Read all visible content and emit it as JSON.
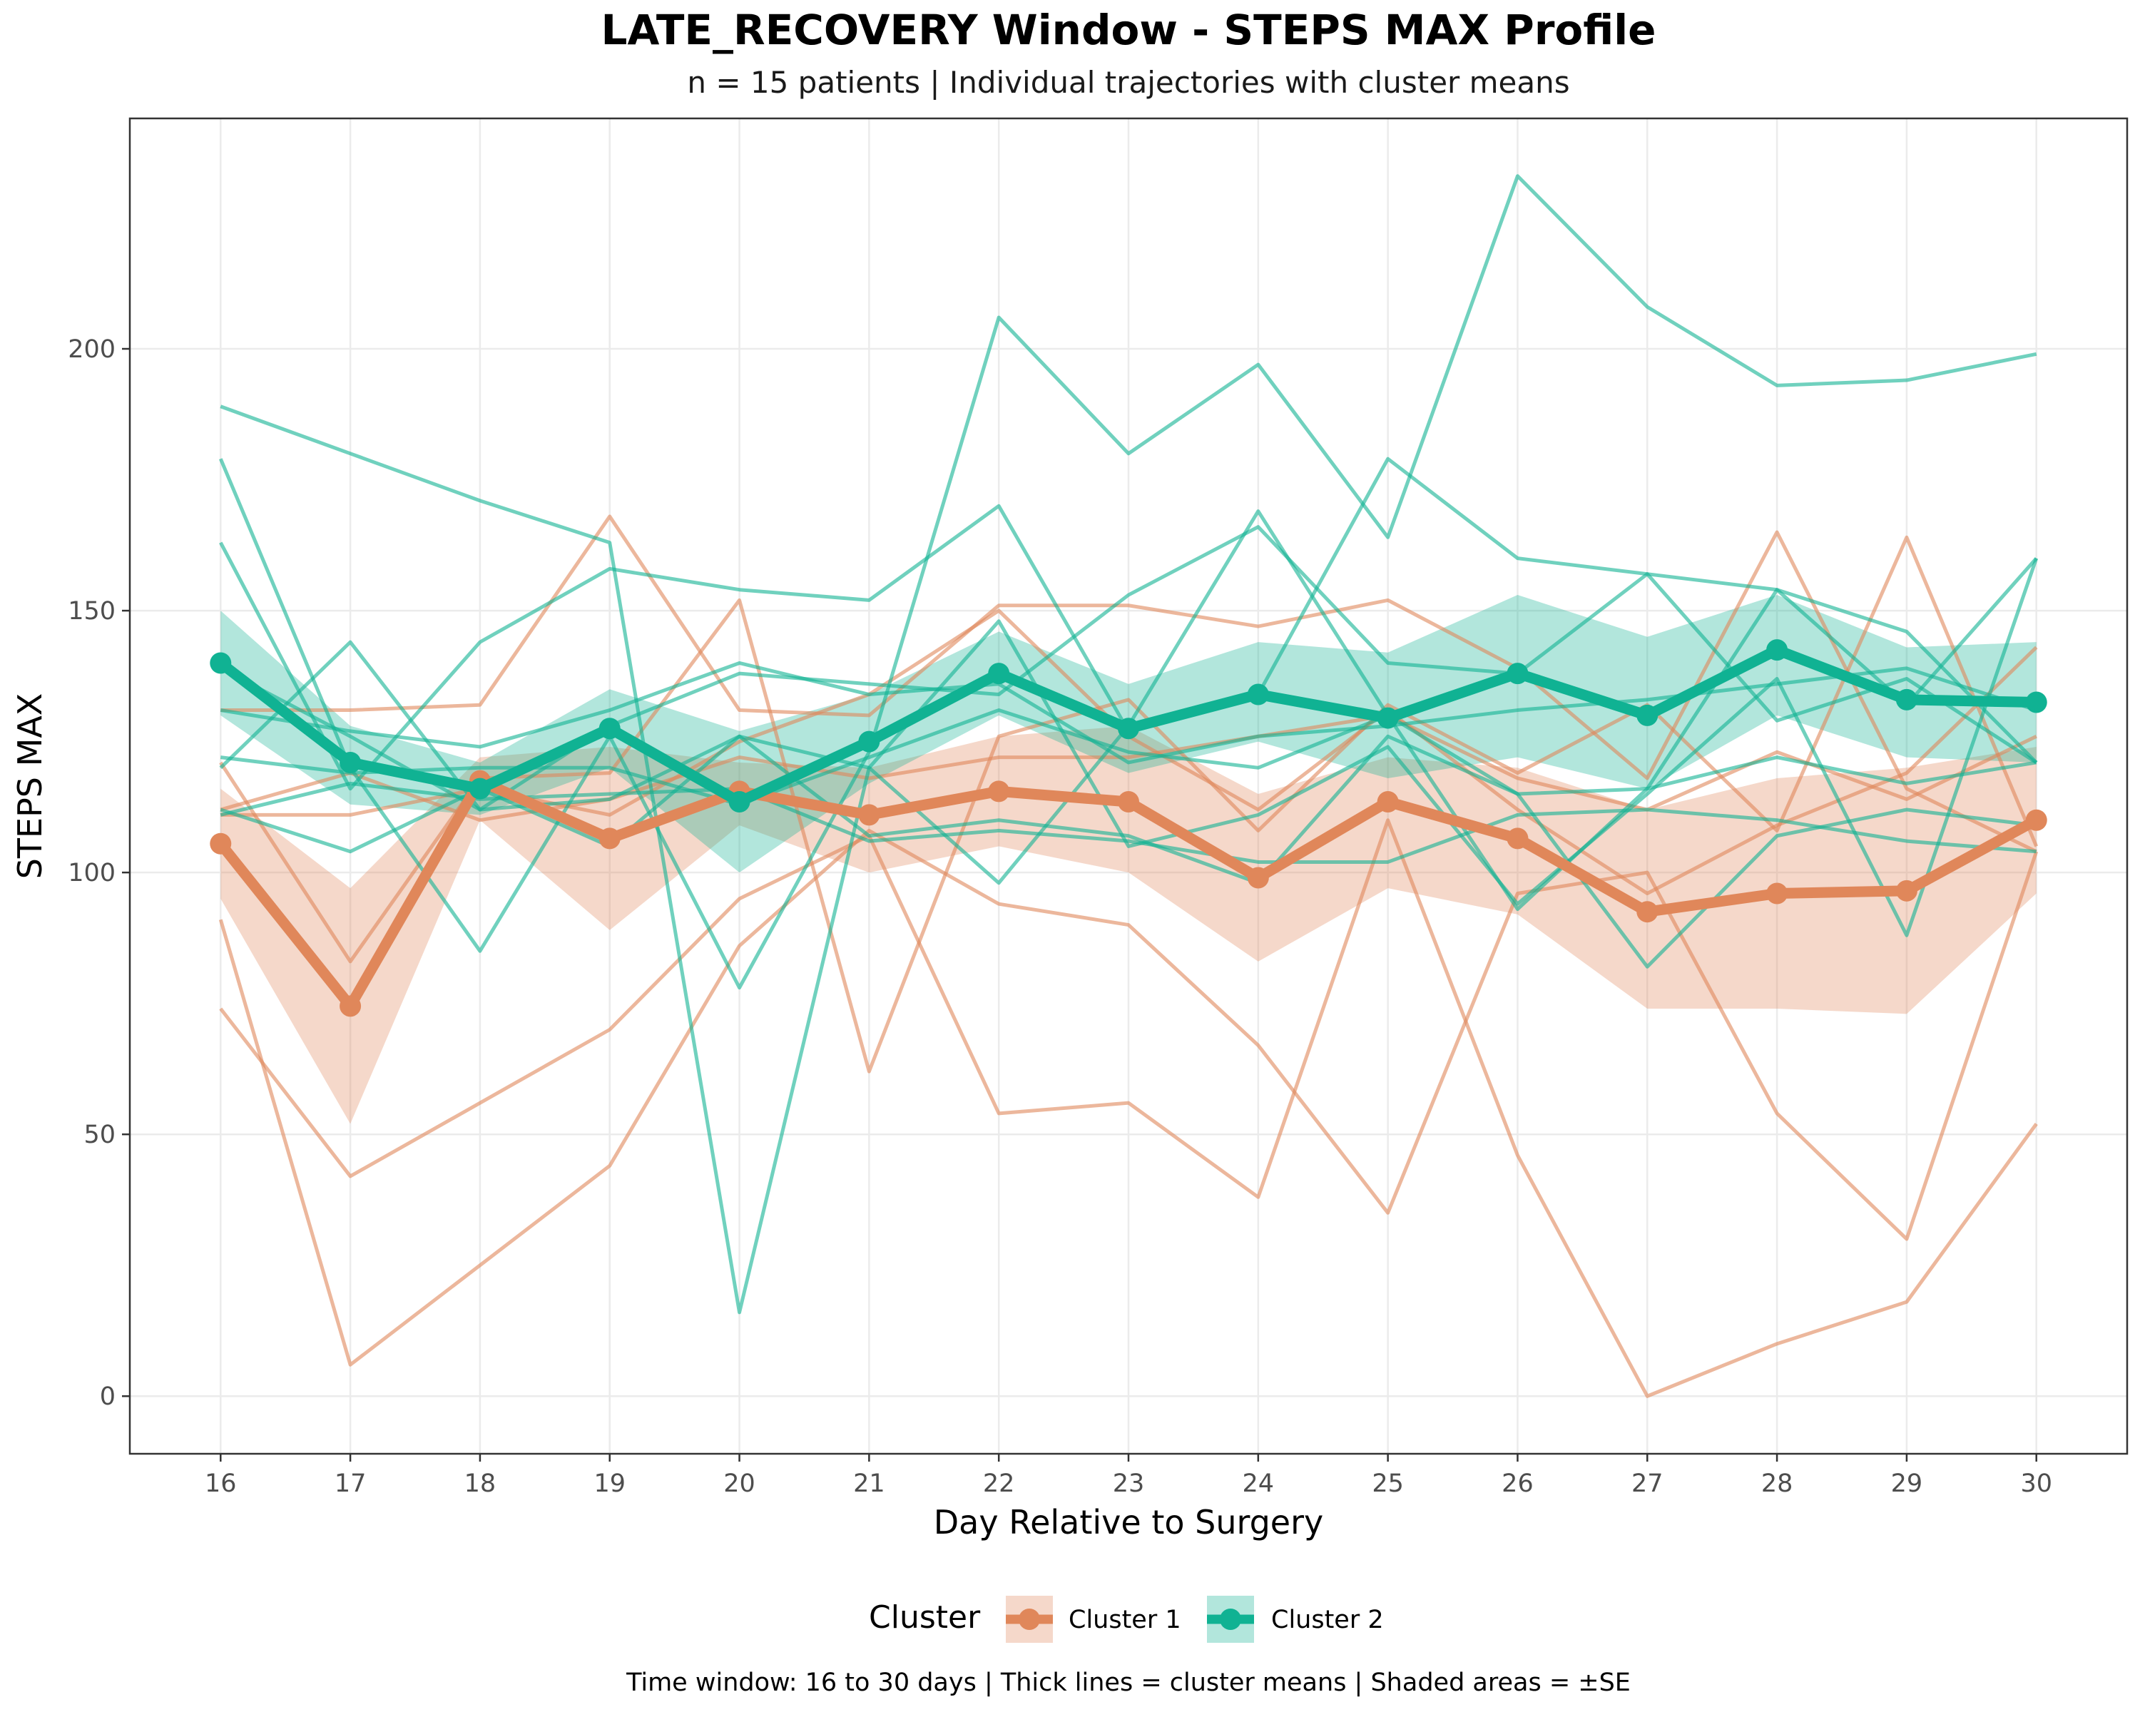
{
  "chart_data": {
    "type": "line",
    "title": "LATE_RECOVERY Window - STEPS MAX Profile",
    "subtitle": "n = 15 patients | Individual trajectories with cluster means",
    "caption": "Time window: 16 to 30 days | Thick lines = cluster means | Shaded areas = ±SE",
    "xlabel": "Day Relative to Surgery",
    "ylabel": "STEPS MAX",
    "x": [
      16,
      17,
      18,
      19,
      20,
      21,
      22,
      23,
      24,
      25,
      26,
      27,
      28,
      29,
      30
    ],
    "xlim": [
      15.3,
      30.7
    ],
    "ylim": [
      -11,
      244
    ],
    "yticks": [
      0,
      50,
      100,
      150,
      200
    ],
    "grid": true,
    "legend": {
      "title": "Cluster",
      "position": "bottom",
      "entries": [
        "Cluster 1",
        "Cluster 2"
      ]
    },
    "colors": {
      "Cluster 1": "#E0875A",
      "Cluster 2": "#10B293"
    },
    "clusters": [
      {
        "name": "Cluster 1",
        "mean": [
          105.5,
          74.5,
          117.5,
          106.5,
          115.5,
          111,
          115.5,
          113.5,
          99,
          113.5,
          106.5,
          92.5,
          96,
          96.5,
          110
        ],
        "se_lower": [
          95,
          52,
          110,
          89,
          109,
          100,
          105,
          100,
          83,
          97,
          92,
          74,
          74,
          73,
          96
        ],
        "se_upper": [
          116,
          97,
          122,
          124,
          121,
          120,
          126,
          128,
          115,
          122,
          120,
          112,
          118,
          120,
          124
        ],
        "individuals": [
          [
            91,
            6,
            25,
            44,
            86,
            108,
            94,
            90,
            67,
            35,
            96,
            100,
            54,
            30,
            104
          ],
          [
            74,
            42,
            56,
            70,
            95,
            107,
            54,
            56,
            38,
            110,
            46,
            0,
            10,
            18,
            52
          ],
          [
            131,
            131,
            132,
            168,
            131,
            130,
            151,
            151,
            147,
            152,
            139,
            118,
            165,
            116,
            104
          ],
          [
            121,
            83,
            118,
            119,
            152,
            62,
            126,
            133,
            108,
            132,
            119,
            132,
            108,
            164,
            105
          ],
          [
            111,
            111,
            116,
            111,
            125,
            134,
            150,
            126,
            112,
            131,
            112,
            96,
            109,
            119,
            143
          ],
          [
            112,
            119,
            110,
            114,
            122,
            118,
            122,
            122,
            126,
            130,
            118,
            112,
            123,
            114,
            126
          ]
        ]
      },
      {
        "name": "Cluster 2",
        "mean": [
          140,
          121,
          116,
          127.5,
          113.5,
          125,
          138,
          127.5,
          134,
          129.5,
          138,
          130,
          142.5,
          133,
          132.5
        ],
        "se_lower": [
          130,
          113,
          111,
          120,
          100,
          117,
          130,
          119,
          125,
          118,
          122,
          116,
          130,
          122,
          121
        ],
        "se_upper": [
          150,
          128,
          121,
          135,
          127,
          134,
          146,
          136,
          144,
          142,
          153,
          145,
          153,
          143,
          144
        ],
        "individuals": [
          [
            189,
            180,
            171,
            163,
            16,
            120,
            98,
            128,
            169,
            130,
            93,
            116,
            154,
            132,
            160
          ],
          [
            179,
            120,
            85,
            126,
            78,
            123,
            206,
            180,
            197,
            164,
            233,
            208,
            193,
            194,
            199
          ],
          [
            163,
            116,
            144,
            158,
            154,
            152,
            170,
            127,
            134,
            179,
            160,
            157,
            154,
            146,
            121
          ],
          [
            120,
            144,
            112,
            128,
            138,
            136,
            134,
            153,
            166,
            140,
            138,
            157,
            129,
            137,
            121
          ],
          [
            112,
            104,
            116,
            105,
            126,
            120,
            148,
            105,
            111,
            124,
            94,
            115,
            137,
            88,
            160
          ],
          [
            111,
            117,
            114,
            115,
            116,
            106,
            108,
            106,
            102,
            102,
            111,
            112,
            110,
            106,
            104
          ],
          [
            122,
            119,
            120,
            120,
            113,
            122,
            131,
            123,
            120,
            130,
            115,
            116,
            122,
            117,
            121
          ],
          [
            139,
            126,
            112,
            114,
            126,
            107,
            110,
            107,
            98,
            126,
            115,
            82,
            107,
            112,
            109
          ],
          [
            131,
            127,
            124,
            131,
            140,
            134,
            136,
            121,
            126,
            128,
            131,
            133,
            136,
            139,
            131
          ]
        ]
      }
    ]
  }
}
